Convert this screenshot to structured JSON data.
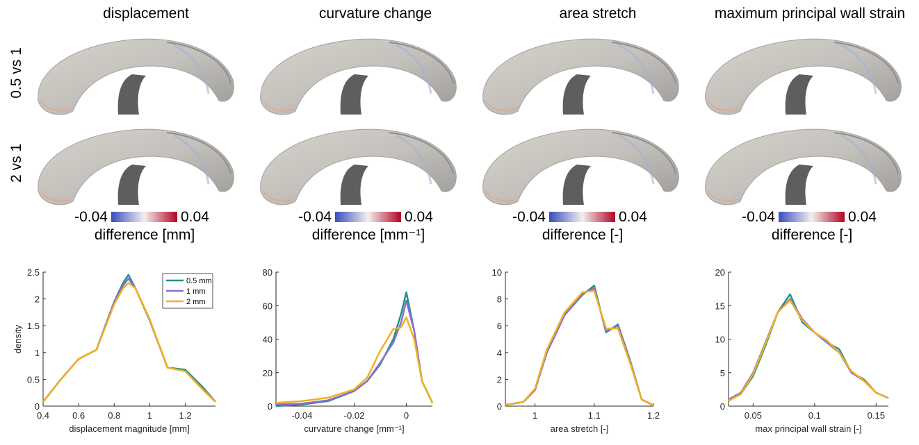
{
  "column_titles": [
    "displacement",
    "curvature change",
    "area stretch",
    "maximum principal wall strain"
  ],
  "row_labels": [
    "0.5 vs 1",
    "2 vs 1"
  ],
  "colorbars": [
    {
      "min": -0.04,
      "max": 0.04,
      "label": "difference [mm]"
    },
    {
      "min": -0.04,
      "max": 0.04,
      "label": "difference [mm⁻¹]"
    },
    {
      "min": -0.04,
      "max": 0.04,
      "label": "difference [-]"
    },
    {
      "min": -0.04,
      "max": 0.04,
      "label": "difference [-]"
    }
  ],
  "chart_data": [
    {
      "type": "line",
      "xlabel": "displacement magnitude [mm]",
      "ylabel": "density",
      "x": [
        0.4,
        0.5,
        0.6,
        0.7,
        0.8,
        0.85,
        0.88,
        0.92,
        1.0,
        1.1,
        1.2,
        1.3,
        1.37
      ],
      "series": [
        {
          "name": "0.5 mm",
          "color": "#1f9488",
          "values": [
            0.08,
            0.5,
            0.88,
            1.05,
            1.95,
            2.3,
            2.45,
            2.2,
            1.6,
            0.72,
            0.68,
            0.35,
            0.08
          ]
        },
        {
          "name": "1 mm",
          "color": "#8e6ccf",
          "values": [
            0.08,
            0.5,
            0.88,
            1.05,
            1.95,
            2.25,
            2.38,
            2.2,
            1.6,
            0.72,
            0.65,
            0.33,
            0.08
          ]
        },
        {
          "name": "2 mm",
          "color": "#f2b01e",
          "values": [
            0.08,
            0.5,
            0.88,
            1.05,
            1.9,
            2.2,
            2.3,
            2.2,
            1.62,
            0.72,
            0.65,
            0.3,
            0.08
          ]
        }
      ],
      "xlim": [
        0.4,
        1.37
      ],
      "xticks": [
        0.4,
        0.6,
        0.8,
        1,
        1.2
      ],
      "ylim": [
        0,
        2.5
      ],
      "yticks": [
        0,
        0.5,
        1,
        1.5,
        2,
        2.5
      ],
      "legend": "upper right"
    },
    {
      "type": "line",
      "xlabel": "curvature  change [mm⁻¹]",
      "x": [
        -0.05,
        -0.04,
        -0.03,
        -0.02,
        -0.015,
        -0.01,
        -0.005,
        -0.002,
        0,
        0.003,
        0.006,
        0.01
      ],
      "series": [
        {
          "color": "#1f9488",
          "values": [
            0,
            1,
            3,
            9,
            15,
            25,
            40,
            55,
            68,
            45,
            15,
            2
          ]
        },
        {
          "color": "#8e6ccf",
          "values": [
            1,
            1.5,
            3.5,
            9,
            15,
            26,
            38,
            50,
            63,
            45,
            15,
            2
          ]
        },
        {
          "color": "#f2b01e",
          "values": [
            2,
            3,
            5,
            10,
            17,
            33,
            46,
            47,
            53,
            40,
            15,
            2
          ]
        }
      ],
      "xlim": [
        -0.05,
        0.01
      ],
      "xticks": [
        -0.04,
        -0.02,
        0
      ],
      "ylim": [
        0,
        80
      ],
      "yticks": [
        0,
        20,
        40,
        60,
        80
      ]
    },
    {
      "type": "line",
      "xlabel": "area stretch [-]",
      "x": [
        0.95,
        0.98,
        1.0,
        1.02,
        1.05,
        1.08,
        1.1,
        1.12,
        1.14,
        1.16,
        1.18,
        1.2
      ],
      "series": [
        {
          "color": "#1f9488",
          "values": [
            0.1,
            0.3,
            1.2,
            4,
            6.8,
            8.3,
            9,
            5.5,
            6.1,
            3.5,
            0.5,
            0.05
          ]
        },
        {
          "color": "#8e6ccf",
          "values": [
            0.1,
            0.3,
            1.2,
            4,
            6.8,
            8.4,
            8.8,
            5.6,
            6,
            3.4,
            0.5,
            0.05
          ]
        },
        {
          "color": "#f2b01e",
          "values": [
            0.1,
            0.3,
            1.3,
            4.2,
            7,
            8.5,
            8.6,
            5.8,
            5.8,
            3.3,
            0.5,
            0.05
          ]
        }
      ],
      "xlim": [
        0.95,
        1.2
      ],
      "xticks": [
        1,
        1.1,
        1.2
      ],
      "ylim": [
        0,
        10
      ],
      "yticks": [
        0,
        2,
        4,
        6,
        8,
        10
      ]
    },
    {
      "type": "line",
      "xlabel": "max principal wall strain [-]",
      "x": [
        0.03,
        0.04,
        0.05,
        0.06,
        0.07,
        0.08,
        0.09,
        0.1,
        0.11,
        0.12,
        0.13,
        0.14,
        0.15,
        0.16
      ],
      "series": [
        {
          "color": "#1f9488",
          "values": [
            0.8,
            1.8,
            4.5,
            9,
            14,
            16.7,
            12.5,
            11,
            9.5,
            8.5,
            5,
            4,
            2,
            1.2
          ]
        },
        {
          "color": "#8e6ccf",
          "values": [
            1,
            2,
            5,
            9.5,
            14,
            16,
            13,
            11,
            9.5,
            8,
            5,
            3.8,
            2,
            1.2
          ]
        },
        {
          "color": "#f2b01e",
          "values": [
            0.8,
            1.8,
            4.8,
            9.3,
            14,
            15.8,
            12.8,
            11,
            9.8,
            8,
            5.2,
            3.8,
            2,
            1.2
          ]
        }
      ],
      "xlim": [
        0.03,
        0.16
      ],
      "xticks": [
        0.05,
        0.1,
        0.15
      ],
      "ylim": [
        0,
        20
      ],
      "yticks": [
        0,
        5,
        10,
        15,
        20
      ]
    }
  ]
}
